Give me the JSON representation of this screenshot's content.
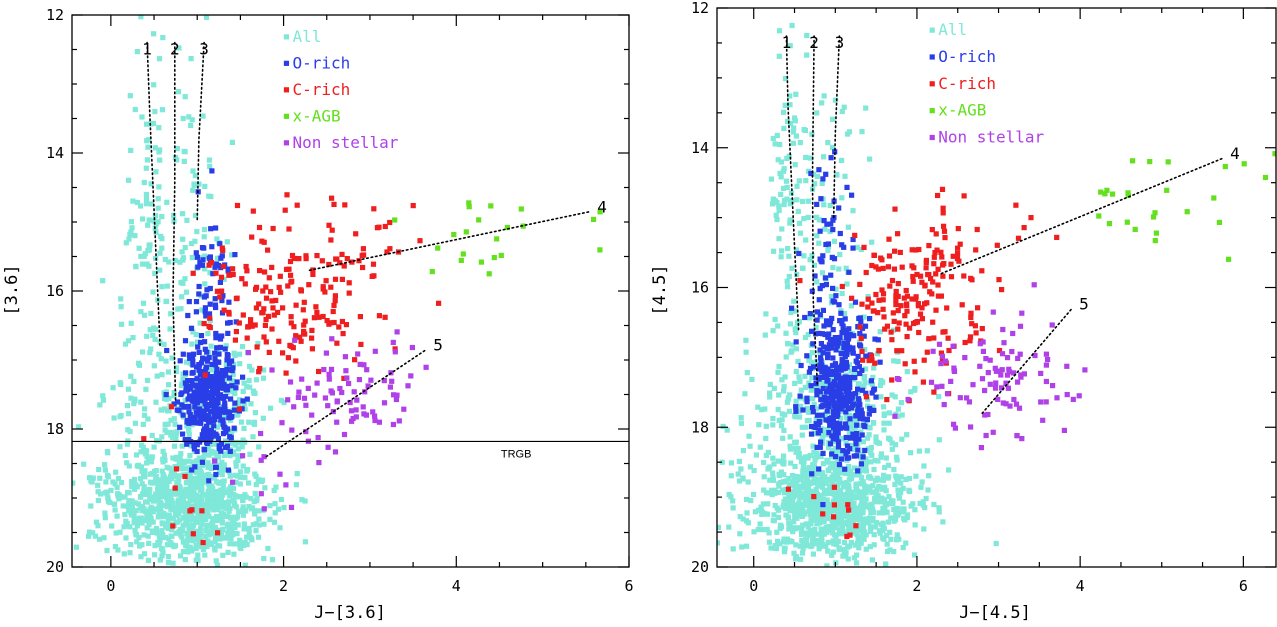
{
  "chart_data": [
    {
      "type": "scatter",
      "title": "",
      "xlabel": "J−[3.6]",
      "ylabel": "[3.6]",
      "xlim": [
        -0.45,
        6.0
      ],
      "ylim": [
        20,
        12
      ],
      "xticks": [
        0,
        2,
        4,
        6
      ],
      "yticks": [
        12,
        14,
        16,
        18,
        20
      ],
      "legend_position": "top-center",
      "series": [
        {
          "name": "All",
          "color": "#7fe8d8",
          "clusters": [
            {
              "x": 0.9,
              "y": 19.1,
              "sx": 0.45,
              "sy": 0.4,
              "n": 900
            },
            {
              "x": 1.2,
              "y": 17.7,
              "sx": 0.35,
              "sy": 0.5,
              "n": 260
            },
            {
              "x": 0.45,
              "y": 15.2,
              "sx": 0.12,
              "sy": 1.6,
              "n": 120
            },
            {
              "x": 0.95,
              "y": 15.5,
              "sx": 0.2,
              "sy": 1.3,
              "n": 90
            },
            {
              "x": 0.1,
              "y": 18.2,
              "sx": 0.45,
              "sy": 1.0,
              "n": 80
            }
          ]
        },
        {
          "name": "O-rich",
          "color": "#2a3ee8",
          "clusters": [
            {
              "x": 1.12,
              "y": 17.6,
              "sx": 0.16,
              "sy": 0.4,
              "n": 360
            },
            {
              "x": 1.15,
              "y": 15.9,
              "sx": 0.13,
              "sy": 0.7,
              "n": 60
            }
          ]
        },
        {
          "name": "C-rich",
          "color": "#ef1f1f",
          "clusters": [
            {
              "x": 2.0,
              "y": 16.2,
              "sx": 0.45,
              "sy": 0.55,
              "n": 150
            },
            {
              "x": 2.7,
              "y": 15.6,
              "sx": 0.45,
              "sy": 0.5,
              "n": 50
            },
            {
              "x": 0.9,
              "y": 19.0,
              "sx": 0.3,
              "sy": 0.5,
              "n": 12
            }
          ]
        },
        {
          "name": "x-AGB",
          "color": "#63e01e",
          "clusters": [
            {
              "x": 4.0,
              "y": 15.2,
              "sx": 0.6,
              "sy": 0.35,
              "n": 20
            },
            {
              "x": 5.6,
              "y": 14.9,
              "sx": 0.15,
              "sy": 0.1,
              "n": 2
            }
          ]
        },
        {
          "name": "Non stellar",
          "color": "#b041e8",
          "clusters": [
            {
              "x": 2.8,
              "y": 17.5,
              "sx": 0.45,
              "sy": 0.35,
              "n": 85
            },
            {
              "x": 1.9,
              "y": 18.6,
              "sx": 0.3,
              "sy": 0.35,
              "n": 12
            }
          ]
        }
      ],
      "lines": [
        {
          "label": "1",
          "points": [
            [
              0.42,
              12.4
            ],
            [
              0.45,
              13.4
            ],
            [
              0.52,
              15.4
            ],
            [
              0.57,
              16.8
            ]
          ]
        },
        {
          "label": "2",
          "points": [
            [
              0.74,
              12.4
            ],
            [
              0.74,
              14.4
            ],
            [
              0.72,
              16.1
            ],
            [
              0.75,
              17.6
            ]
          ]
        },
        {
          "label": "3",
          "points": [
            [
              1.08,
              12.4
            ],
            [
              1.02,
              13.8
            ],
            [
              1.0,
              15.0
            ]
          ]
        },
        {
          "label": "4",
          "points": [
            [
              2.3,
              15.7
            ],
            [
              5.55,
              14.85
            ]
          ]
        },
        {
          "label": "5",
          "points": [
            [
              1.8,
              18.4
            ],
            [
              3.65,
              16.85
            ]
          ]
        }
      ],
      "hline": {
        "y": 18.18,
        "label": "TRGB"
      }
    },
    {
      "type": "scatter",
      "title": "",
      "xlabel": "J−[4.5]",
      "ylabel": "[4.5]",
      "xlim": [
        -0.45,
        6.4
      ],
      "ylim": [
        20,
        12
      ],
      "xticks": [
        0,
        2,
        4,
        6
      ],
      "yticks": [
        12,
        14,
        16,
        18,
        20
      ],
      "legend_position": "top-center",
      "series": [
        {
          "name": "All",
          "color": "#7fe8d8",
          "clusters": [
            {
              "x": 0.95,
              "y": 19.1,
              "sx": 0.5,
              "sy": 0.4,
              "n": 900
            },
            {
              "x": 1.1,
              "y": 17.7,
              "sx": 0.4,
              "sy": 0.5,
              "n": 260
            },
            {
              "x": 0.45,
              "y": 15.2,
              "sx": 0.13,
              "sy": 1.6,
              "n": 120
            },
            {
              "x": 1.0,
              "y": 15.5,
              "sx": 0.22,
              "sy": 1.3,
              "n": 90
            },
            {
              "x": 0.2,
              "y": 18.2,
              "sx": 0.45,
              "sy": 1.0,
              "n": 80
            }
          ]
        },
        {
          "name": "O-rich",
          "color": "#2a3ee8",
          "clusters": [
            {
              "x": 1.05,
              "y": 17.4,
              "sx": 0.2,
              "sy": 0.55,
              "n": 380
            },
            {
              "x": 0.95,
              "y": 15.7,
              "sx": 0.15,
              "sy": 0.8,
              "n": 60
            }
          ]
        },
        {
          "name": "C-rich",
          "color": "#ef1f1f",
          "clusters": [
            {
              "x": 1.9,
              "y": 16.4,
              "sx": 0.45,
              "sy": 0.55,
              "n": 150
            },
            {
              "x": 2.5,
              "y": 15.6,
              "sx": 0.45,
              "sy": 0.5,
              "n": 50
            },
            {
              "x": 1.0,
              "y": 19.2,
              "sx": 0.3,
              "sy": 0.4,
              "n": 12
            }
          ]
        },
        {
          "name": "x-AGB",
          "color": "#63e01e",
          "clusters": [
            {
              "x": 4.7,
              "y": 14.9,
              "sx": 0.55,
              "sy": 0.35,
              "n": 22
            },
            {
              "x": 6.0,
              "y": 14.3,
              "sx": 0.2,
              "sy": 0.15,
              "n": 4
            }
          ]
        },
        {
          "name": "Non stellar",
          "color": "#b041e8",
          "clusters": [
            {
              "x": 3.0,
              "y": 17.3,
              "sx": 0.5,
              "sy": 0.45,
              "n": 100
            }
          ]
        }
      ],
      "lines": [
        {
          "label": "1",
          "points": [
            [
              0.4,
              12.4
            ],
            [
              0.42,
              13.4
            ],
            [
              0.5,
              15.4
            ],
            [
              0.55,
              16.6
            ]
          ]
        },
        {
          "label": "2",
          "points": [
            [
              0.74,
              12.4
            ],
            [
              0.72,
              14.4
            ],
            [
              0.73,
              16.2
            ],
            [
              0.78,
              17.4
            ]
          ]
        },
        {
          "label": "3",
          "points": [
            [
              1.05,
              12.4
            ],
            [
              1.0,
              13.8
            ],
            [
              0.98,
              15.0
            ]
          ]
        },
        {
          "label": "4",
          "points": [
            [
              2.3,
              15.8
            ],
            [
              5.75,
              14.15
            ]
          ]
        },
        {
          "label": "5",
          "points": [
            [
              2.8,
              17.8
            ],
            [
              3.9,
              16.3
            ]
          ]
        }
      ],
      "hline": null
    }
  ]
}
